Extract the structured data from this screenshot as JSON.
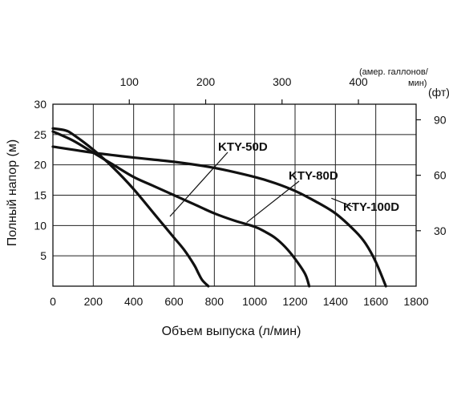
{
  "chart_data": {
    "type": "line",
    "ylabel_left": "Полный напор (м)",
    "ylabel_right_unit": "(фт)",
    "xlabel_bottom": "Объем выпуска (л/мин)",
    "xlabel_top_unit_line1": "(амер. галлонов/",
    "xlabel_top_unit_line2": "мин)",
    "xlim": [
      0,
      1800
    ],
    "ylim": [
      0,
      30
    ],
    "x_ticks": [
      0,
      200,
      400,
      600,
      800,
      1000,
      1200,
      1400,
      1600,
      1800
    ],
    "y_ticks": [
      5,
      10,
      15,
      20,
      25,
      30
    ],
    "x_top_ticks": [
      100,
      200,
      300,
      400
    ],
    "y_right_ticks": [
      30,
      60,
      90
    ],
    "grid": true,
    "series": [
      {
        "name": "KTY-50D",
        "x": [
          0,
          60,
          100,
          200,
          300,
          400,
          500,
          550,
          600,
          650,
          700,
          720,
          740,
          770
        ],
        "y": [
          26,
          25.7,
          25,
          22.5,
          19.5,
          16,
          12,
          10,
          8,
          6,
          3.5,
          2.2,
          1,
          0
        ]
      },
      {
        "name": "KTY-80D",
        "x": [
          0,
          100,
          200,
          300,
          400,
          500,
          600,
          700,
          800,
          900,
          1000,
          1050,
          1100,
          1150,
          1200,
          1250,
          1270
        ],
        "y": [
          25.5,
          24,
          22,
          20,
          18,
          16.5,
          15,
          13.5,
          12,
          10.8,
          9.8,
          9,
          8,
          6.5,
          4.5,
          2,
          0
        ]
      },
      {
        "name": "KTY-100D",
        "x": [
          0,
          200,
          400,
          600,
          800,
          1000,
          1100,
          1200,
          1300,
          1400,
          1500,
          1550,
          1600,
          1650
        ],
        "y": [
          23,
          22,
          21.2,
          20.5,
          19.5,
          18,
          17,
          15.7,
          14,
          12,
          9,
          7,
          4,
          0
        ]
      }
    ],
    "annotations": [
      "KTY-50D",
      "KTY-80D",
      "KTY-100D"
    ]
  }
}
